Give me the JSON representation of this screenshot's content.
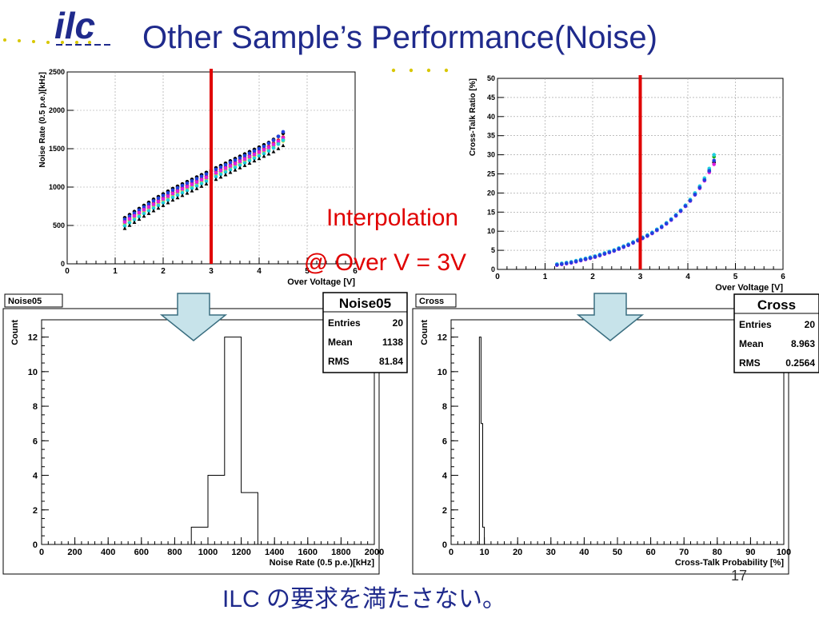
{
  "slide": {
    "title": "Other Sample’s Performance(Noise)",
    "logo_text": "ilc",
    "annotation_line1": "Interpolation",
    "annotation_line2": "@ Over V = 3V",
    "footer": "ILC の要求を満たさない。",
    "page_number": "17"
  },
  "colors": {
    "title": "#1f2a8c",
    "logo": "#1f2a8c",
    "dots": "#d8c700",
    "red": "#e00000",
    "arrow_fill": "#c7e3ea",
    "arrow_stroke": "#3a6e80"
  },
  "chart_data": [
    {
      "id": "noise-scatter",
      "type": "scatter",
      "xlabel": "Over Voltage [V]",
      "ylabel": "Noise Rate (0.5 p.e.)[kHz]",
      "xlim": [
        0,
        6
      ],
      "ylim": [
        0,
        2500
      ],
      "xticks": [
        "0",
        "1",
        "2",
        "3",
        "4",
        "5",
        "6"
      ],
      "yticks": [
        "0",
        "500",
        "1000",
        "1500",
        "2000",
        "2500"
      ],
      "grid": true,
      "cursor_x": 3,
      "series_x": [
        1.2,
        1.3,
        1.4,
        1.5,
        1.6,
        1.7,
        1.8,
        1.9,
        2.0,
        2.1,
        2.2,
        2.3,
        2.4,
        2.5,
        2.6,
        2.7,
        2.8,
        2.9,
        3.0,
        3.1,
        3.2,
        3.3,
        3.4,
        3.5,
        3.6,
        3.7,
        3.8,
        3.9,
        4.0,
        4.1,
        4.2,
        4.3,
        4.4,
        4.5
      ],
      "series": [
        {
          "color": "#000000",
          "values": [
            600,
            640,
            680,
            720,
            760,
            800,
            840,
            875,
            910,
            945,
            980,
            1010,
            1040,
            1070,
            1100,
            1130,
            1160,
            1190,
            1220,
            1250,
            1280,
            1310,
            1340,
            1370,
            1400,
            1430,
            1460,
            1490,
            1520,
            1550,
            1580,
            1620,
            1660,
            1700
          ]
        },
        {
          "color": "#e02020",
          "values": [
            560,
            600,
            640,
            680,
            720,
            755,
            790,
            825,
            860,
            895,
            930,
            960,
            990,
            1020,
            1050,
            1080,
            1110,
            1140,
            1170,
            1200,
            1230,
            1260,
            1290,
            1320,
            1350,
            1380,
            1410,
            1440,
            1470,
            1500,
            1530,
            1570,
            1610,
            1650
          ]
        },
        {
          "color": "#20b020",
          "values": [
            530,
            570,
            610,
            650,
            690,
            725,
            760,
            795,
            830,
            865,
            900,
            930,
            960,
            990,
            1020,
            1050,
            1080,
            1110,
            1140,
            1170,
            1200,
            1230,
            1260,
            1290,
            1320,
            1350,
            1380,
            1410,
            1440,
            1470,
            1500,
            1540,
            1580,
            1620
          ]
        },
        {
          "color": "#2040e0",
          "values": [
            580,
            620,
            660,
            700,
            740,
            780,
            820,
            855,
            890,
            925,
            960,
            990,
            1020,
            1050,
            1080,
            1110,
            1140,
            1170,
            1200,
            1230,
            1260,
            1290,
            1320,
            1350,
            1380,
            1410,
            1440,
            1470,
            1500,
            1530,
            1570,
            1610,
            1660,
            1720
          ]
        },
        {
          "color": "#e0e020",
          "values": [
            510,
            550,
            590,
            630,
            670,
            705,
            740,
            775,
            810,
            845,
            880,
            910,
            940,
            970,
            1000,
            1030,
            1060,
            1090,
            1120,
            1150,
            1180,
            1210,
            1240,
            1270,
            1300,
            1330,
            1360,
            1390,
            1420,
            1450,
            1480,
            1520,
            1560,
            1600
          ]
        },
        {
          "color": "#e020e0",
          "values": [
            545,
            585,
            625,
            665,
            705,
            740,
            775,
            810,
            845,
            880,
            915,
            945,
            975,
            1005,
            1035,
            1065,
            1095,
            1125,
            1155,
            1185,
            1215,
            1245,
            1275,
            1305,
            1335,
            1365,
            1395,
            1425,
            1455,
            1485,
            1515,
            1555,
            1595,
            1640
          ]
        },
        {
          "color": "#20d0e0",
          "values": [
            495,
            535,
            575,
            615,
            655,
            690,
            725,
            760,
            795,
            830,
            865,
            895,
            925,
            955,
            985,
            1015,
            1045,
            1075,
            1105,
            1135,
            1165,
            1195,
            1225,
            1255,
            1285,
            1315,
            1345,
            1375,
            1405,
            1435,
            1470,
            1510,
            1560,
            1610
          ]
        },
        {
          "color": "#000000",
          "marker": "triangle",
          "values": [
            460,
            500,
            540,
            580,
            620,
            655,
            690,
            725,
            760,
            795,
            830,
            860,
            890,
            920,
            950,
            980,
            1010,
            1040,
            1070,
            1100,
            1130,
            1160,
            1190,
            1220,
            1250,
            1280,
            1310,
            1340,
            1370,
            1400,
            1430,
            1460,
            1500,
            1540
          ]
        }
      ]
    },
    {
      "id": "crosstalk-scatter",
      "type": "scatter",
      "xlabel": "Over Voltage [V]",
      "ylabel": "Cross-Talk  Ratio [%]",
      "xlim": [
        0,
        6
      ],
      "ylim": [
        0,
        50
      ],
      "xticks": [
        "0",
        "1",
        "2",
        "3",
        "4",
        "5",
        "6"
      ],
      "yticks": [
        "0",
        "5",
        "10",
        "15",
        "20",
        "25",
        "30",
        "35",
        "40",
        "45",
        "50"
      ],
      "grid": true,
      "cursor_x": 3,
      "series_x": [
        1.25,
        1.35,
        1.45,
        1.55,
        1.65,
        1.75,
        1.85,
        1.95,
        2.05,
        2.15,
        2.25,
        2.35,
        2.45,
        2.55,
        2.65,
        2.75,
        2.85,
        2.95,
        3.05,
        3.15,
        3.25,
        3.35,
        3.45,
        3.55,
        3.65,
        3.75,
        3.85,
        3.95,
        4.05,
        4.15,
        4.25,
        4.35,
        4.45,
        4.55
      ],
      "series": [
        {
          "color": "#000000",
          "values": [
            1.2,
            1.4,
            1.6,
            1.8,
            2.1,
            2.4,
            2.7,
            3.0,
            3.3,
            3.7,
            4.1,
            4.5,
            4.9,
            5.4,
            5.9,
            6.4,
            7.0,
            7.6,
            8.2,
            8.8,
            9.5,
            10.3,
            11.1,
            12.0,
            13.0,
            14.1,
            15.3,
            16.6,
            18.0,
            19.6,
            21.4,
            23.4,
            25.6,
            28.0
          ]
        },
        {
          "color": "#20b020",
          "values": [
            1.3,
            1.5,
            1.7,
            1.9,
            2.2,
            2.5,
            2.8,
            3.1,
            3.4,
            3.8,
            4.2,
            4.6,
            5.0,
            5.5,
            6.0,
            6.5,
            7.1,
            7.7,
            8.3,
            8.9,
            9.6,
            10.4,
            11.2,
            12.1,
            13.1,
            14.2,
            15.4,
            16.7,
            18.2,
            19.8,
            21.6,
            23.6,
            26.0,
            29.5
          ]
        },
        {
          "color": "#e020e0",
          "values": [
            1.1,
            1.3,
            1.5,
            1.7,
            2.0,
            2.3,
            2.6,
            2.9,
            3.2,
            3.6,
            4.0,
            4.4,
            4.8,
            5.3,
            5.8,
            6.3,
            6.9,
            7.5,
            8.1,
            8.7,
            9.4,
            10.2,
            11.0,
            11.9,
            12.9,
            14.0,
            15.2,
            16.5,
            17.9,
            19.5,
            21.2,
            23.2,
            25.4,
            27.5
          ]
        },
        {
          "color": "#20d0e0",
          "values": [
            1.4,
            1.6,
            1.8,
            2.0,
            2.3,
            2.6,
            2.9,
            3.2,
            3.5,
            3.9,
            4.3,
            4.7,
            5.1,
            5.6,
            6.1,
            6.6,
            7.2,
            7.8,
            8.4,
            9.0,
            9.7,
            10.5,
            11.3,
            12.2,
            13.2,
            14.3,
            15.5,
            16.8,
            18.3,
            20.0,
            21.8,
            23.9,
            26.4,
            30.0
          ]
        },
        {
          "color": "#2040e0",
          "values": [
            1.2,
            1.4,
            1.6,
            1.8,
            2.1,
            2.4,
            2.7,
            3.0,
            3.3,
            3.7,
            4.1,
            4.5,
            4.9,
            5.4,
            5.9,
            6.4,
            7.0,
            7.6,
            8.2,
            8.8,
            9.5,
            10.3,
            11.1,
            12.0,
            13.0,
            14.1,
            15.3,
            16.6,
            18.0,
            19.6,
            21.4,
            23.4,
            25.8,
            28.5
          ]
        }
      ]
    },
    {
      "id": "noise05-hist",
      "type": "bar",
      "name_tab": "Noise05",
      "stats_title": "Noise05",
      "stats": [
        {
          "label": "Entries",
          "value": "20"
        },
        {
          "label": "Mean",
          "value": "1138"
        },
        {
          "label": "RMS",
          "value": "81.84"
        }
      ],
      "xlabel": "Noise Rate (0.5 p.e.)[kHz]",
      "ylabel": "Count",
      "xlim": [
        0,
        2000
      ],
      "ylim": [
        0,
        13
      ],
      "xticks": [
        "0",
        "200",
        "400",
        "600",
        "800",
        "1000",
        "1200",
        "1400",
        "1600",
        "1800",
        "2000"
      ],
      "yticks": [
        "0",
        "2",
        "4",
        "6",
        "8",
        "10",
        "12"
      ],
      "bins": [
        {
          "x0": 900,
          "x1": 1000,
          "count": 1
        },
        {
          "x0": 1000,
          "x1": 1100,
          "count": 4
        },
        {
          "x0": 1100,
          "x1": 1200,
          "count": 12
        },
        {
          "x0": 1200,
          "x1": 1300,
          "count": 3
        }
      ]
    },
    {
      "id": "cross-hist",
      "type": "bar",
      "name_tab": "Cross",
      "stats_title": "Cross",
      "stats": [
        {
          "label": "Entries",
          "value": "20"
        },
        {
          "label": "Mean",
          "value": "8.963"
        },
        {
          "label": "RMS",
          "value": "0.2564"
        }
      ],
      "xlabel": "Cross-Talk Probability [%]",
      "ylabel": "Count",
      "xlim": [
        0,
        100
      ],
      "ylim": [
        0,
        13
      ],
      "xticks": [
        "0",
        "10",
        "20",
        "30",
        "40",
        "50",
        "60",
        "70",
        "80",
        "90",
        "100"
      ],
      "yticks": [
        "0",
        "2",
        "4",
        "6",
        "8",
        "10",
        "12"
      ],
      "bins": [
        {
          "x0": 8.5,
          "x1": 9.0,
          "count": 12
        },
        {
          "x0": 9.0,
          "x1": 9.5,
          "count": 7
        },
        {
          "x0": 9.5,
          "x1": 10.0,
          "count": 1
        }
      ]
    }
  ]
}
